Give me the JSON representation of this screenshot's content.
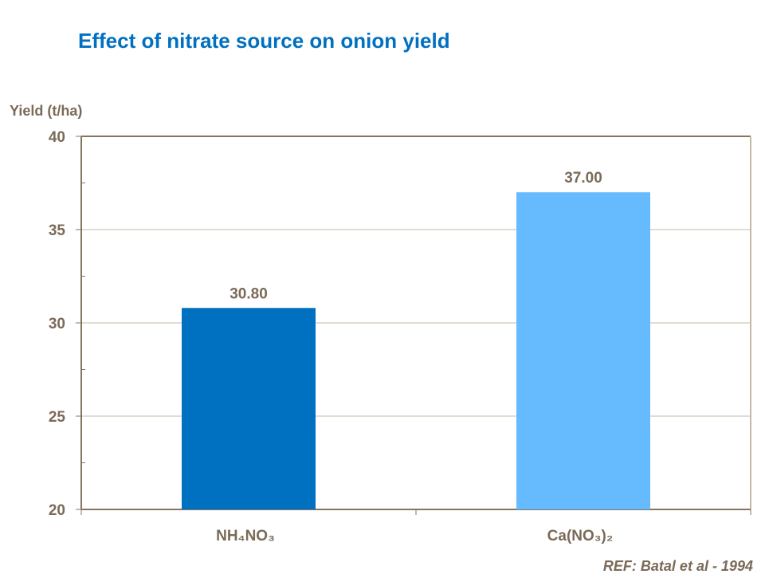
{
  "chart_data": {
    "type": "bar",
    "title": "Effect of nitrate source on onion yield",
    "ylabel": "Yield (t/ha)",
    "xlabel": "",
    "categories": [
      "NH₄NO₃",
      "Ca(NO₃)₂"
    ],
    "values": [
      30.8,
      37.0
    ],
    "data_labels": [
      "30.80",
      "37.00"
    ],
    "ylim": [
      20,
      40
    ],
    "yticks": [
      20,
      25,
      30,
      35,
      40
    ],
    "grid": true,
    "legend": "none",
    "colors": {
      "bars": [
        "#0070c0",
        "#66bbff"
      ],
      "title": "#0070c0",
      "text": "#7b6a58",
      "axis": "#857460",
      "grid": "#c4b8a6"
    },
    "reference": "REF: Batal et al - 1994"
  }
}
